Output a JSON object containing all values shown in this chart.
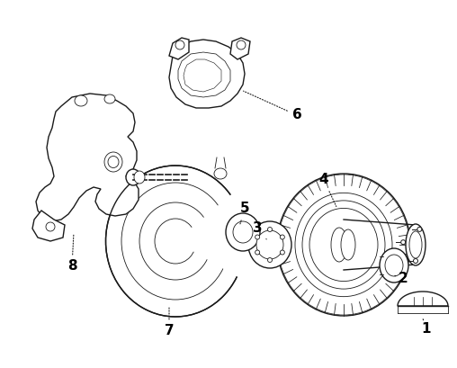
{
  "background_color": "#ffffff",
  "line_color": "#1a1a1a",
  "label_color": "#000000",
  "figsize": [
    5.08,
    4.09
  ],
  "dpi": 100,
  "lw_main": 1.0,
  "lw_thin": 0.6,
  "label_fontsize": 11
}
